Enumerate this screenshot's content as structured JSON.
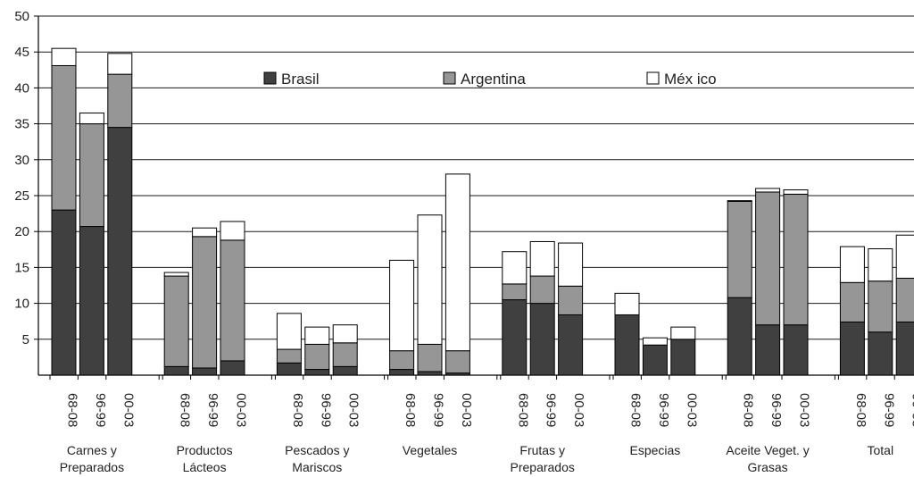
{
  "chart_data": {
    "type": "bar",
    "stacked": true,
    "ylim": [
      0,
      50
    ],
    "yticks": [
      5,
      10,
      15,
      20,
      25,
      30,
      35,
      40,
      45,
      50
    ],
    "grid": true,
    "legend_position": "top-center",
    "period_labels": [
      "68-08",
      "96-99",
      "00-03"
    ],
    "groups": [
      {
        "label": [
          "Carnes y",
          "Preparados"
        ]
      },
      {
        "label": [
          "Productos",
          "Lácteos"
        ]
      },
      {
        "label": [
          "Pescados y",
          "Mariscos"
        ]
      },
      {
        "label": [
          "Vegetales"
        ]
      },
      {
        "label": [
          "Frutas y",
          "Preparados"
        ]
      },
      {
        "label": [
          "Especias"
        ]
      },
      {
        "label": [
          "Aceite Veget. y",
          "Grasas"
        ]
      },
      {
        "label": [
          "Total"
        ]
      }
    ],
    "series": [
      {
        "name": "Brasil",
        "color": "#404040",
        "values": [
          [
            23.0,
            20.7,
            34.5
          ],
          [
            1.2,
            1.0,
            2.0
          ],
          [
            1.7,
            0.8,
            1.2
          ],
          [
            0.8,
            0.5,
            0.3
          ],
          [
            10.5,
            10.0,
            8.4
          ],
          [
            8.4,
            4.2,
            5.0
          ],
          [
            10.8,
            7.0,
            7.0
          ],
          [
            7.4,
            6.0,
            7.4
          ]
        ]
      },
      {
        "name": "Argentina",
        "color": "#969696",
        "values": [
          [
            20.1,
            14.3,
            7.4
          ],
          [
            12.6,
            18.3,
            16.8
          ],
          [
            1.9,
            3.5,
            3.3
          ],
          [
            2.6,
            3.8,
            3.1
          ],
          [
            2.2,
            3.8,
            4.0
          ],
          [
            0.0,
            0.0,
            0.0
          ],
          [
            13.4,
            18.5,
            18.2
          ],
          [
            5.5,
            7.1,
            6.1
          ]
        ]
      },
      {
        "name": "Méx ico",
        "color": "#ffffff",
        "values": [
          [
            2.4,
            1.5,
            2.9
          ],
          [
            0.5,
            1.2,
            2.6
          ],
          [
            5.0,
            2.4,
            2.5
          ],
          [
            12.6,
            18.0,
            24.6
          ],
          [
            4.5,
            4.8,
            6.0
          ],
          [
            3.0,
            1.0,
            1.7
          ],
          [
            0.1,
            0.5,
            0.6
          ],
          [
            5.0,
            4.5,
            6.0
          ]
        ]
      }
    ]
  }
}
